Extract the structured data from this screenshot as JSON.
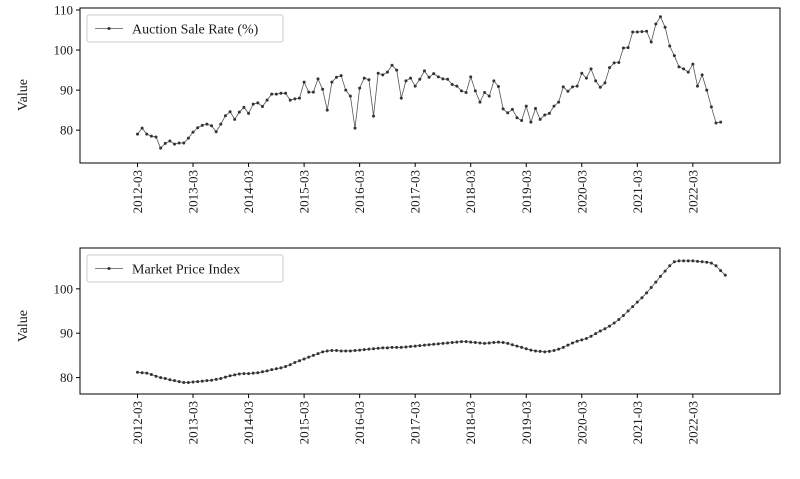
{
  "chart_data": [
    {
      "type": "line",
      "xlabel": "",
      "ylabel": "Value",
      "x_tick_labels": [
        "2012-03",
        "2013-03",
        "2014-03",
        "2015-03",
        "2016-03",
        "2017-03",
        "2018-03",
        "2019-03",
        "2020-03",
        "2021-03",
        "2022-03"
      ],
      "y_ticks": [
        80,
        90,
        100,
        110
      ],
      "ylim": [
        71.8,
        110.5
      ],
      "legend_position": "top-left",
      "grid": false,
      "series": [
        {
          "name": "Auction Sale Rate (%)",
          "color": "#555555",
          "x_start": "2012-03",
          "frequency": "monthly",
          "values": [
            79.0,
            80.5,
            79.0,
            78.5,
            78.3,
            75.5,
            76.7,
            77.3,
            76.5,
            76.8,
            76.8,
            78.0,
            79.5,
            80.6,
            81.2,
            81.5,
            81.1,
            79.6,
            81.5,
            83.6,
            84.6,
            82.7,
            84.5,
            85.7,
            84.2,
            86.5,
            86.8,
            85.9,
            87.5,
            89.0,
            89.0,
            89.2,
            89.2,
            87.5,
            87.8,
            88.0,
            92.0,
            89.5,
            89.5,
            92.8,
            90.2,
            85.0,
            92.0,
            93.2,
            93.6,
            90.0,
            88.5,
            80.5,
            90.5,
            93.0,
            92.6,
            83.5,
            94.2,
            93.8,
            94.5,
            96.2,
            95.0,
            88.0,
            92.3,
            93.0,
            91.0,
            92.7,
            94.8,
            93.2,
            94.1,
            93.3,
            92.8,
            92.7,
            91.4,
            91.0,
            89.8,
            89.4,
            93.3,
            89.8,
            87.0,
            89.4,
            88.5,
            92.3,
            90.9,
            85.3,
            84.3,
            85.2,
            83.1,
            82.4,
            86.0,
            82.0,
            85.4,
            82.7,
            83.8,
            84.2,
            86.0,
            87.0,
            90.8,
            89.7,
            90.8,
            91.0,
            94.2,
            93.0,
            95.3,
            92.3,
            90.7,
            91.8,
            95.6,
            96.8,
            96.9,
            100.5,
            100.6,
            104.5,
            104.5,
            104.6,
            104.7,
            102.0,
            106.5,
            108.3,
            105.7,
            101.0,
            98.6,
            95.8,
            95.3,
            94.5,
            96.5,
            91.0,
            93.8,
            90.0,
            85.8,
            81.8,
            82.0
          ]
        }
      ]
    },
    {
      "type": "line",
      "xlabel": "",
      "ylabel": "Value",
      "x_tick_labels": [
        "2012-03",
        "2013-03",
        "2014-03",
        "2015-03",
        "2016-03",
        "2017-03",
        "2018-03",
        "2019-03",
        "2020-03",
        "2021-03",
        "2022-03"
      ],
      "y_ticks": [
        80,
        90,
        100
      ],
      "ylim": [
        76.3,
        109.2
      ],
      "legend_position": "top-left",
      "grid": false,
      "series": [
        {
          "name": "Market Price Index",
          "color": "#555555",
          "x_start": "2012-03",
          "frequency": "monthly",
          "values": [
            81.2,
            81.1,
            81.0,
            80.7,
            80.3,
            80.0,
            79.8,
            79.5,
            79.3,
            79.1,
            78.9,
            78.9,
            79.0,
            79.1,
            79.2,
            79.3,
            79.4,
            79.6,
            79.8,
            80.1,
            80.4,
            80.6,
            80.8,
            80.9,
            80.9,
            81.0,
            81.1,
            81.3,
            81.5,
            81.8,
            82.0,
            82.2,
            82.5,
            82.9,
            83.4,
            83.8,
            84.2,
            84.6,
            85.0,
            85.4,
            85.8,
            86.0,
            86.1,
            86.1,
            86.0,
            86.0,
            86.0,
            86.1,
            86.2,
            86.3,
            86.4,
            86.5,
            86.6,
            86.7,
            86.7,
            86.8,
            86.8,
            86.8,
            86.9,
            87.0,
            87.1,
            87.2,
            87.3,
            87.4,
            87.5,
            87.6,
            87.7,
            87.8,
            87.9,
            88.0,
            88.1,
            88.1,
            88.0,
            87.9,
            87.8,
            87.7,
            87.8,
            87.9,
            88.0,
            87.9,
            87.7,
            87.4,
            87.1,
            86.8,
            86.5,
            86.2,
            86.0,
            85.9,
            85.8,
            85.9,
            86.1,
            86.4,
            86.8,
            87.3,
            87.8,
            88.2,
            88.5,
            88.8,
            89.3,
            89.9,
            90.5,
            91.0,
            91.6,
            92.3,
            93.1,
            94.0,
            95.0,
            96.0,
            97.0,
            98.0,
            99.1,
            100.3,
            101.5,
            102.8,
            104.0,
            105.2,
            106.1,
            106.3,
            106.3,
            106.3,
            106.3,
            106.2,
            106.1,
            106.0,
            105.8,
            105.2,
            104.1,
            103.1
          ]
        }
      ]
    }
  ]
}
